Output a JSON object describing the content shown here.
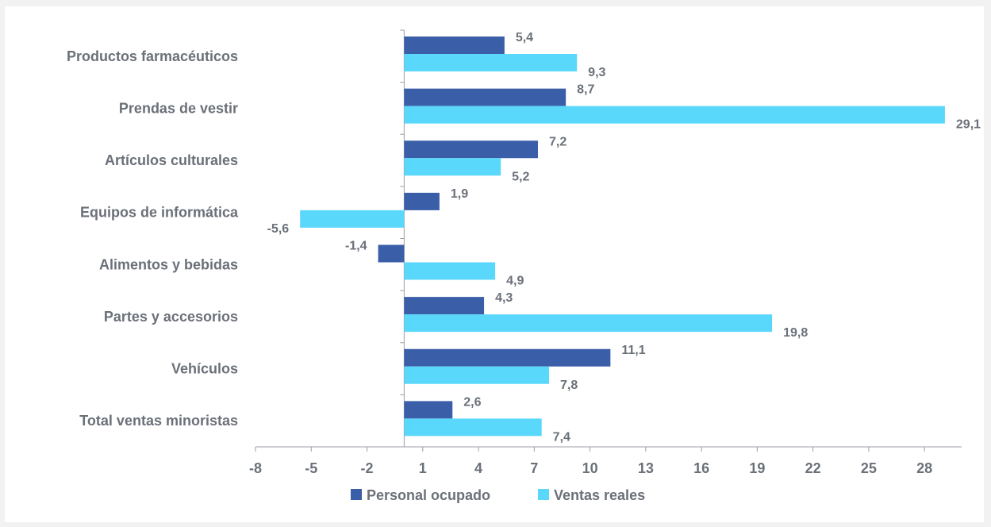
{
  "chart_data": {
    "type": "bar",
    "orientation": "horizontal",
    "categories": [
      "Productos farmacéuticos",
      "Prendas de vestir",
      "Artículos culturales",
      "Equipos de informática",
      "Alimentos y bebidas",
      "Partes y accesorios",
      "Vehículos",
      "Total ventas minoristas"
    ],
    "series": [
      {
        "name": "Personal ocupado",
        "color": "#3a5ea8",
        "values": [
          5.4,
          8.7,
          7.2,
          1.9,
          -1.4,
          4.3,
          11.1,
          2.6
        ],
        "labels": [
          "5,4",
          "8,7",
          "7,2",
          "1,9",
          "-1,4",
          "4,3",
          "11,1",
          "2,6"
        ]
      },
      {
        "name": "Ventas reales",
        "color": "#5ad8fb",
        "values": [
          9.3,
          29.1,
          5.2,
          -5.6,
          4.9,
          19.8,
          7.8,
          7.4
        ],
        "labels": [
          "9,3",
          "29,1",
          "5,2",
          "-5,6",
          "4,9",
          "19,8",
          "7,8",
          "7,4"
        ]
      }
    ],
    "xlim": [
      -8,
      30
    ],
    "xticks": [
      -8,
      -5,
      -2,
      1,
      4,
      7,
      10,
      13,
      16,
      19,
      22,
      25,
      28
    ],
    "grid": false,
    "legend_position": "bottom"
  },
  "colors": {
    "axis": "#9a9ea6",
    "text": "#6b7079",
    "background": "#ffffff"
  }
}
